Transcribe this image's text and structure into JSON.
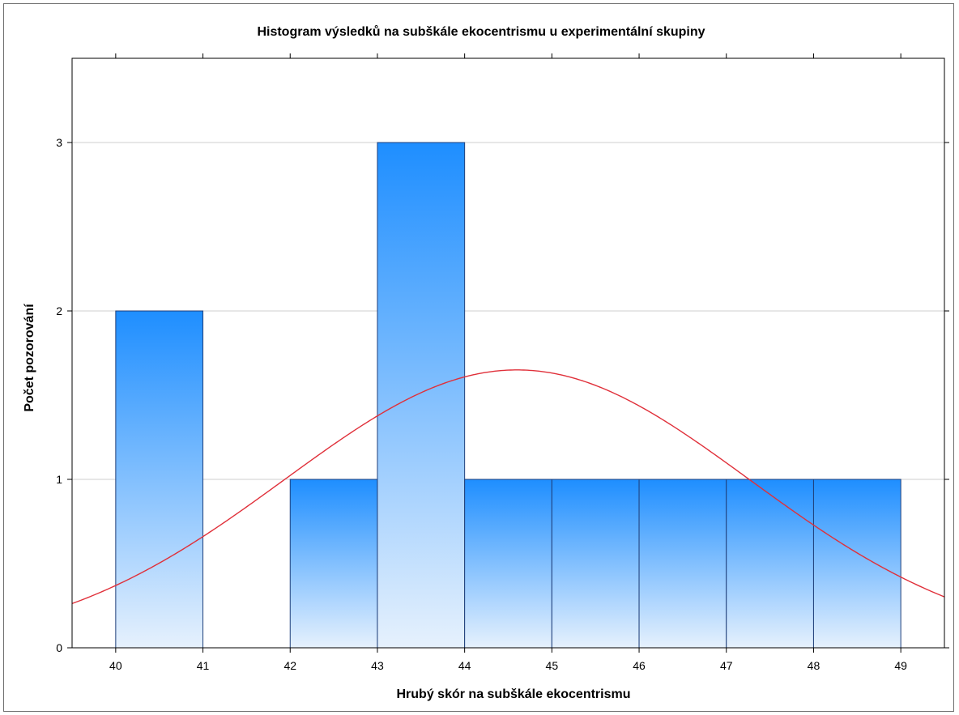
{
  "chart_data": {
    "type": "bar",
    "title": "Histogram výsledků na subškále ekocentrismu u experimentální skupiny",
    "xlabel": "Hrubý skór na subškále ekocentrismu",
    "ylabel": "Počet pozorování",
    "x_ticks": [
      "40",
      "41",
      "42",
      "43",
      "44",
      "45",
      "46",
      "47",
      "48",
      "49"
    ],
    "y_ticks": [
      "0",
      "1",
      "2",
      "3"
    ],
    "xlim": [
      39.5,
      49.5
    ],
    "ylim": [
      0,
      3.5
    ],
    "bins": [
      {
        "x0": 40,
        "x1": 41,
        "count": 2
      },
      {
        "x0": 41,
        "x1": 42,
        "count": 0
      },
      {
        "x0": 42,
        "x1": 43,
        "count": 1
      },
      {
        "x0": 43,
        "x1": 44,
        "count": 3
      },
      {
        "x0": 44,
        "x1": 45,
        "count": 1
      },
      {
        "x0": 45,
        "x1": 46,
        "count": 1
      },
      {
        "x0": 46,
        "x1": 47,
        "count": 1
      },
      {
        "x0": 47,
        "x1": 48,
        "count": 1
      },
      {
        "x0": 48,
        "x1": 49,
        "count": 1
      }
    ],
    "normal_curve": {
      "mean": 44.6,
      "sd": 2.66,
      "n": 11,
      "bin_width": 1,
      "color": "#e0303a"
    },
    "grid": "horizontal",
    "colors": {
      "bar_top": "#1e8eff",
      "bar_bottom": "#e6f1fd",
      "bar_edge": "#1f3f7a",
      "grid": "#cfcfcf"
    }
  }
}
